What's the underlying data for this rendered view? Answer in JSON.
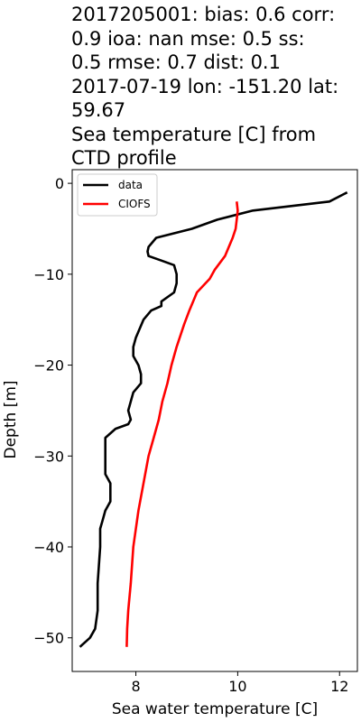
{
  "chart_data": {
    "type": "line",
    "title_lines": [
      "2017205001: bias: 0.6  corr:",
      "0.9  ioa: nan  mse: 0.5  ss:",
      "0.5  rmse: 0.7  dist: 0.1",
      "2017-07-19 lon: -151.20 lat:",
      "59.67",
      "Sea temperature [C] from",
      "CTD profile"
    ],
    "xlabel": "Sea water temperature [C]",
    "ylabel": "Depth [m]",
    "xlim": [
      6.75,
      12.35
    ],
    "ylim": [
      -53.7,
      1.5
    ],
    "xticks": [
      8,
      10,
      12
    ],
    "yticks": [
      0,
      -10,
      -20,
      -30,
      -40,
      -50
    ],
    "tick_labels": {
      "x": [
        "8",
        "10",
        "12"
      ],
      "y": [
        "0",
        "−10",
        "−20",
        "−30",
        "−40",
        "−50"
      ]
    },
    "legend": {
      "placement": "top-left",
      "entries": [
        "data",
        "CIOFS"
      ]
    },
    "series": [
      {
        "name": "data",
        "color": "#000000",
        "x": [
          12.15,
          11.8,
          10.3,
          9.6,
          9.1,
          8.4,
          8.25,
          8.23,
          8.25,
          8.5,
          8.75,
          8.8,
          8.8,
          8.75,
          8.5,
          8.5,
          8.3,
          8.15,
          8.0,
          7.95,
          7.95,
          8.05,
          8.1,
          8.1,
          7.95,
          7.9,
          7.85,
          7.9,
          7.85,
          7.6,
          7.4,
          7.4,
          7.4,
          7.4,
          7.5,
          7.5,
          7.4,
          7.35,
          7.3,
          7.3,
          7.25,
          7.25,
          7.2,
          7.1,
          6.9
        ],
        "y": [
          -1,
          -2,
          -3,
          -4,
          -5,
          -6,
          -7,
          -7.5,
          -8,
          -8.5,
          -9,
          -10,
          -11,
          -12,
          -13,
          -13.5,
          -14,
          -15,
          -17,
          -18,
          -19,
          -20,
          -21,
          -22,
          -23,
          -24,
          -25,
          -26,
          -26.5,
          -27,
          -28,
          -30,
          -31,
          -32,
          -33,
          -35,
          -36,
          -37,
          -38,
          -40,
          -44,
          -47,
          -49,
          -50,
          -51
        ]
      },
      {
        "name": "CIOFS",
        "color": "#ff0000",
        "x": [
          9.98,
          10.0,
          9.98,
          9.96,
          9.9,
          9.75,
          9.55,
          9.45,
          9.2,
          9.05,
          8.95,
          8.8,
          8.7,
          8.62,
          8.52,
          8.45,
          8.35,
          8.25,
          8.15,
          8.05,
          7.95,
          7.9,
          7.85,
          7.83,
          7.82
        ],
        "y": [
          -2,
          -3,
          -4,
          -5,
          -6,
          -8,
          -9.5,
          -10.5,
          -12,
          -14,
          -15.5,
          -18,
          -20,
          -22,
          -24,
          -26,
          -28,
          -30,
          -33,
          -36,
          -40,
          -44,
          -47,
          -49,
          -51
        ]
      }
    ]
  }
}
